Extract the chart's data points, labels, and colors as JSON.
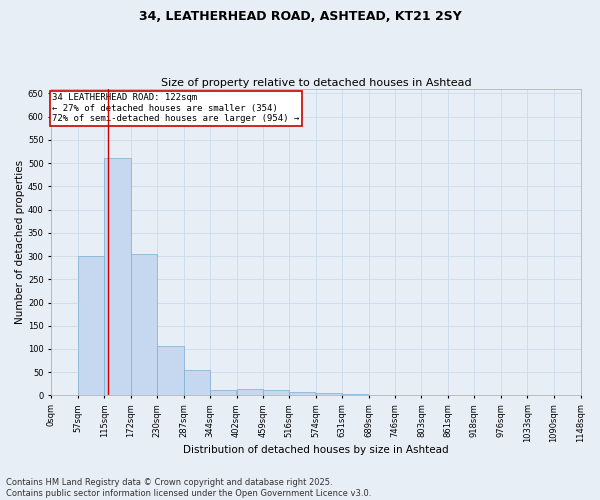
{
  "title1": "34, LEATHERHEAD ROAD, ASHTEAD, KT21 2SY",
  "title2": "Size of property relative to detached houses in Ashtead",
  "xlabel": "Distribution of detached houses by size in Ashtead",
  "ylabel": "Number of detached properties",
  "bar_color": "#c5d8ef",
  "bar_edge_color": "#7aaed4",
  "grid_color": "#ccdaeb",
  "background_color": "#e8eef5",
  "annotation_text": "34 LEATHERHEAD ROAD: 122sqm\n← 27% of detached houses are smaller (354)\n72% of semi-detached houses are larger (954) →",
  "annotation_box_facecolor": "#ffffff",
  "annotation_box_edge": "#cc0000",
  "vline_x": 122,
  "vline_color": "#cc0000",
  "bins": [
    0,
    57,
    115,
    172,
    230,
    287,
    344,
    402,
    459,
    516,
    574,
    631,
    689,
    746,
    803,
    861,
    918,
    976,
    1033,
    1090,
    1148
  ],
  "values": [
    2,
    300,
    510,
    305,
    107,
    55,
    12,
    13,
    12,
    8,
    6,
    3,
    0,
    0,
    0,
    0,
    1,
    0,
    0,
    1
  ],
  "ylim": [
    0,
    660
  ],
  "yticks": [
    0,
    50,
    100,
    150,
    200,
    250,
    300,
    350,
    400,
    450,
    500,
    550,
    600,
    650
  ],
  "footer_text": "Contains HM Land Registry data © Crown copyright and database right 2025.\nContains public sector information licensed under the Open Government Licence v3.0.",
  "footer_fontsize": 6,
  "title_fontsize": 9,
  "subtitle_fontsize": 8,
  "xlabel_fontsize": 7.5,
  "ylabel_fontsize": 7.5,
  "tick_fontsize": 6,
  "annot_fontsize": 6.5
}
